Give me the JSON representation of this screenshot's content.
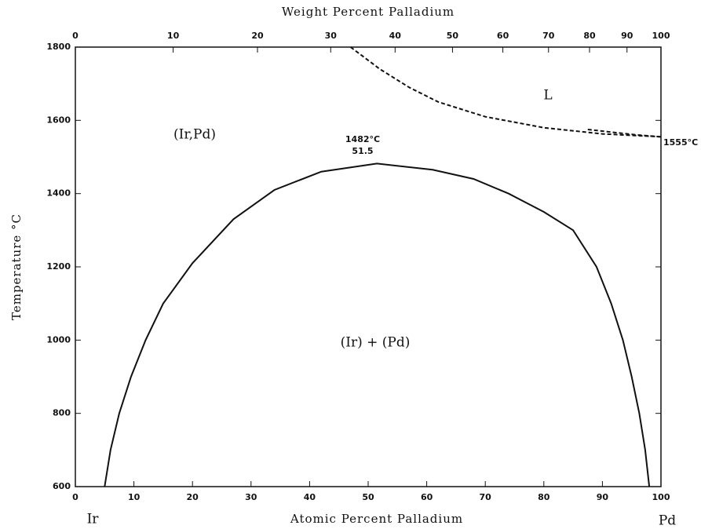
{
  "chart_data": {
    "type": "line",
    "x_label": "Atomic Percent Palladium",
    "x2_label": "Weight Percent Palladium",
    "y_label": "Temperature °C",
    "xlim": [
      0,
      100
    ],
    "xticks": [
      0,
      10,
      20,
      30,
      40,
      50,
      60,
      70,
      80,
      90,
      100
    ],
    "x2ticks": [
      {
        "value": 0,
        "label": "0"
      },
      {
        "value": 16.7,
        "label": "10"
      },
      {
        "value": 31.1,
        "label": "20"
      },
      {
        "value": 43.6,
        "label": "30"
      },
      {
        "value": 54.6,
        "label": "40"
      },
      {
        "value": 64.4,
        "label": "50"
      },
      {
        "value": 73.0,
        "label": "60"
      },
      {
        "value": 80.8,
        "label": "70"
      },
      {
        "value": 87.8,
        "label": "80"
      },
      {
        "value": 94.2,
        "label": "90"
      },
      {
        "value": 100,
        "label": "100"
      }
    ],
    "ylim": [
      600,
      1800
    ],
    "yticks": [
      600,
      800,
      1000,
      1200,
      1400,
      1600,
      1800
    ],
    "series": [
      {
        "color": "#111111",
        "dashed": false,
        "x": [
          5,
          6,
          7.5,
          9.5,
          12,
          15,
          20,
          27,
          34,
          42,
          51.5,
          61,
          68,
          74,
          80,
          85,
          89,
          91.5,
          93.5,
          95,
          96.3,
          97.3,
          98
        ],
        "values": [
          600,
          700,
          800,
          900,
          1000,
          1100,
          1210,
          1330,
          1410,
          1460,
          1482,
          1465,
          1440,
          1400,
          1350,
          1300,
          1200,
          1100,
          1000,
          900,
          800,
          700,
          600
        ]
      },
      {
        "color": "#111111",
        "dashed": true,
        "x": [
          47,
          52,
          57,
          62,
          70,
          80,
          90,
          100
        ],
        "values": [
          1800,
          1740,
          1690,
          1650,
          1610,
          1580,
          1563,
          1555
        ]
      },
      {
        "color": "#111111",
        "dashed": true,
        "x": [
          87.5,
          92,
          96,
          100
        ],
        "values": [
          1575,
          1567,
          1560,
          1555
        ]
      }
    ],
    "annotations": [
      "1482°C",
      "51.5",
      "1555°C",
      "(Ir,Pd)",
      "L",
      "(Ir) + (Pd)",
      "Ir",
      "Pd"
    ]
  }
}
